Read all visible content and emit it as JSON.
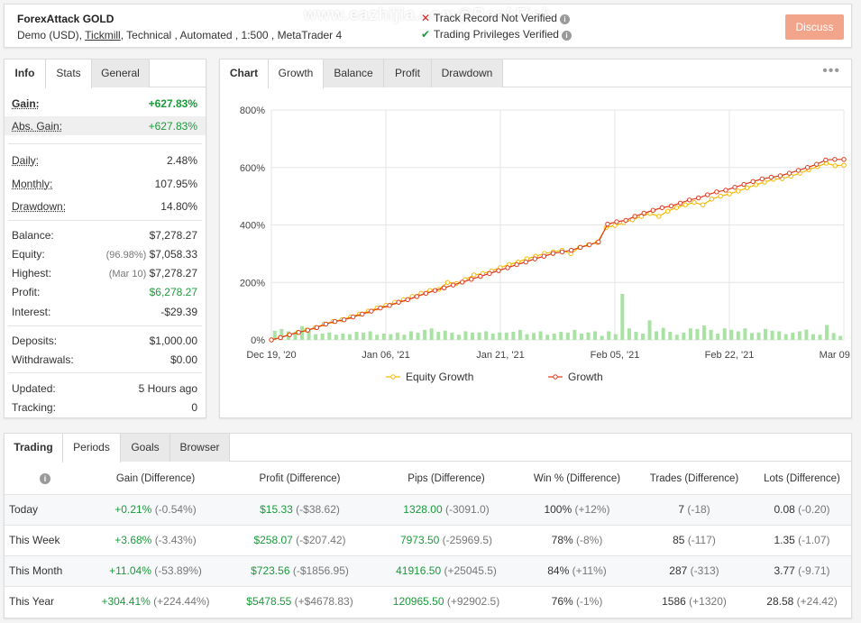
{
  "header": {
    "title": "ForexAttack GOLD",
    "account_type": "Demo (USD),",
    "broker": "Tickmill",
    "details": ", Technical , Automated , 1:500 , MetaTrader 4",
    "watermark": "www.eazhijia.com@BeakFish",
    "track_record": "Track Record Not Verified",
    "privileges": "Trading Privileges Verified",
    "discuss_label": "Discuss",
    "colors": {
      "discuss_bg": "#f2a58a",
      "verified": "#1a9b3a",
      "not_verified": "#e02020"
    }
  },
  "info_panel": {
    "tabs": [
      "Info",
      "Stats",
      "General"
    ],
    "rows": {
      "gain": {
        "label": "Gain:",
        "value": "+627.83%"
      },
      "abs_gain": {
        "label": "Abs. Gain:",
        "value": "+627.83%"
      },
      "daily": {
        "label": "Daily:",
        "value": "2.48%"
      },
      "monthly": {
        "label": "Monthly:",
        "value": "107.95%"
      },
      "drawdown": {
        "label": "Drawdown:",
        "value": "14.80%"
      },
      "balance": {
        "label": "Balance:",
        "value": "$7,278.27"
      },
      "equity": {
        "label": "Equity:",
        "note": "(96.98%)",
        "value": "$7,058.33"
      },
      "highest": {
        "label": "Highest:",
        "note": "(Mar 10)",
        "value": "$7,278.27"
      },
      "profit": {
        "label": "Profit:",
        "value": "$6,278.27"
      },
      "interest": {
        "label": "Interest:",
        "value": "-$29.39"
      },
      "deposits": {
        "label": "Deposits:",
        "value": "$1,000.00"
      },
      "withdrawals": {
        "label": "Withdrawals:",
        "value": "$0.00"
      },
      "updated": {
        "label": "Updated:",
        "value": "5 Hours ago"
      },
      "tracking": {
        "label": "Tracking:",
        "value": "0"
      }
    }
  },
  "chart_panel": {
    "tabs": [
      "Chart",
      "Growth",
      "Balance",
      "Profit",
      "Drawdown"
    ],
    "menu_icon": "more-dots-icon"
  },
  "chart_data": {
    "type": "line",
    "y_ticks": [
      "0%",
      "200%",
      "400%",
      "600%",
      "800%"
    ],
    "ylim": [
      0,
      800
    ],
    "x_ticks": [
      "Dec 19, '20",
      "Jan 06, '21",
      "Jan 21, '21",
      "Feb 05, '21",
      "Feb 22, '21",
      "Mar 09, '21"
    ],
    "grid": true,
    "legend_position": "bottom",
    "series": [
      {
        "name": "Equity Growth",
        "color": "#f5b800",
        "values": [
          0,
          8,
          18,
          26,
          34,
          43,
          55,
          64,
          70,
          80,
          90,
          100,
          111,
          120,
          131,
          140,
          151,
          162,
          172,
          176,
          200,
          196,
          210,
          226,
          231,
          240,
          251,
          262,
          271,
          282,
          291,
          301,
          306,
          312,
          300,
          322,
          331,
          339,
          391,
          398,
          408,
          418,
          430,
          440,
          430,
          448,
          460,
          470,
          478,
          470,
          490,
          500,
          508,
          518,
          529,
          540,
          549,
          559,
          561,
          570,
          580,
          592,
          603,
          615,
          606,
          608
        ]
      },
      {
        "name": "Growth",
        "color": "#e03a1e",
        "values": [
          0,
          8,
          18,
          26,
          34,
          43,
          55,
          64,
          70,
          80,
          90,
          100,
          111,
          120,
          131,
          140,
          151,
          162,
          172,
          181,
          191,
          201,
          211,
          221,
          231,
          241,
          251,
          262,
          271,
          282,
          291,
          301,
          306,
          312,
          322,
          331,
          341,
          403,
          411,
          416,
          430,
          441,
          451,
          460,
          466,
          476,
          487,
          494,
          505,
          515,
          521,
          531,
          541,
          551,
          560,
          566,
          571,
          580,
          590,
          600,
          611,
          626,
          628,
          628
        ]
      }
    ],
    "bars": {
      "name": "daily activity",
      "color": "#a8e3a3",
      "values": [
        32,
        38,
        30,
        28,
        48,
        35,
        20,
        22,
        26,
        18,
        22,
        20,
        28,
        25,
        30,
        18,
        22,
        20,
        25,
        18,
        30,
        25,
        35,
        40,
        28,
        32,
        25,
        18,
        30,
        25,
        26,
        30,
        22,
        26,
        25,
        28,
        35,
        20,
        24,
        30,
        18,
        22,
        28,
        25,
        35,
        22,
        26,
        30,
        14,
        30,
        20,
        160,
        40,
        28,
        22,
        68,
        30,
        42,
        28,
        18,
        25,
        40,
        38,
        50,
        35,
        22,
        40,
        35,
        30,
        40,
        24,
        26,
        38,
        32,
        30,
        20,
        25,
        30,
        36,
        20,
        18,
        52,
        24,
        14
      ]
    }
  },
  "periods": {
    "tabs": [
      "Trading",
      "Periods",
      "Goals",
      "Browser"
    ],
    "columns": [
      "",
      "Gain (Difference)",
      "Profit (Difference)",
      "Pips (Difference)",
      "Win % (Difference)",
      "Trades (Difference)",
      "Lots (Difference)"
    ],
    "rows": [
      {
        "period": "Today",
        "gain": "+0.21%",
        "gain_diff": "(-0.54%)",
        "profit": "$15.33",
        "profit_diff": "(-$38.62)",
        "pips": "1328.00",
        "pips_diff": "(-3091.0)",
        "win": "100%",
        "win_diff": "(+12%)",
        "trades": "7",
        "trades_diff": "(-18)",
        "lots": "0.08",
        "lots_diff": "(-0.20)"
      },
      {
        "period": "This Week",
        "gain": "+3.68%",
        "gain_diff": "(-3.43%)",
        "profit": "$258.07",
        "profit_diff": "(-$207.42)",
        "pips": "7973.50",
        "pips_diff": "(-25969.5)",
        "win": "78%",
        "win_diff": "(-8%)",
        "trades": "85",
        "trades_diff": "(-117)",
        "lots": "1.35",
        "lots_diff": "(-1.07)"
      },
      {
        "period": "This Month",
        "gain": "+11.04%",
        "gain_diff": "(-53.89%)",
        "profit": "$723.56",
        "profit_diff": "(-$1856.95)",
        "pips": "41916.50",
        "pips_diff": "(+25045.5)",
        "win": "84%",
        "win_diff": "(+11%)",
        "trades": "287",
        "trades_diff": "(-313)",
        "lots": "3.77",
        "lots_diff": "(-9.71)"
      },
      {
        "period": "This Year",
        "gain": "+304.41%",
        "gain_diff": "(+224.44%)",
        "profit": "$5478.55",
        "profit_diff": "(+$4678.83)",
        "pips": "120965.50",
        "pips_diff": "(+92902.5)",
        "win": "76%",
        "win_diff": "(-1%)",
        "trades": "1586",
        "trades_diff": "(+1320)",
        "lots": "28.58",
        "lots_diff": "(+24.42)"
      }
    ]
  }
}
